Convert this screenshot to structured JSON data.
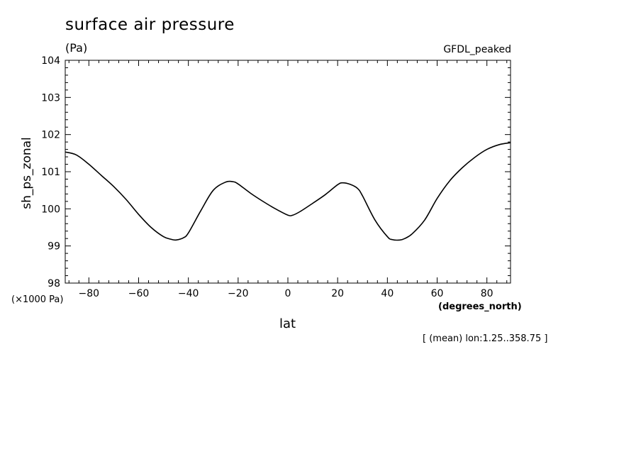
{
  "title": "surface air pressure",
  "units": "(Pa)",
  "model": "GFDL_peaked",
  "y_scale_note": "(×1000 Pa)",
  "x_units": "(degrees_north)",
  "footnote": "[ (mean) lon:1.25..358.75 ]",
  "chart_data": {
    "type": "line",
    "title": "surface air pressure",
    "xlabel": "lat",
    "ylabel": "sh_ps_zonal",
    "xlim": [
      -89.5,
      89.5
    ],
    "ylim": [
      98,
      104
    ],
    "xticks": [
      -80,
      -60,
      -40,
      -20,
      0,
      20,
      40,
      60,
      80
    ],
    "yticks": [
      98,
      99,
      100,
      101,
      102,
      103,
      104
    ],
    "grid": false,
    "series": [
      {
        "x": [
          -89.5,
          -85,
          -80,
          -75,
          -70,
          -65,
          -60,
          -55,
          -50,
          -47,
          -45,
          -42,
          -40,
          -35,
          -30,
          -25,
          -22,
          -20,
          -15,
          -10,
          -5,
          0,
          2,
          5,
          10,
          15,
          20,
          22,
          25,
          28,
          30,
          35,
          40,
          42,
          45,
          47,
          50,
          55,
          60,
          65,
          70,
          75,
          80,
          85,
          89.5
        ],
        "y": [
          101.53,
          101.45,
          101.2,
          100.9,
          100.6,
          100.25,
          99.85,
          99.5,
          99.25,
          99.18,
          99.16,
          99.22,
          99.35,
          99.95,
          100.5,
          100.72,
          100.73,
          100.67,
          100.42,
          100.2,
          100.0,
          99.83,
          99.83,
          99.93,
          100.15,
          100.38,
          100.65,
          100.7,
          100.66,
          100.55,
          100.35,
          99.7,
          99.25,
          99.17,
          99.16,
          99.2,
          99.33,
          99.7,
          100.28,
          100.75,
          101.1,
          101.38,
          101.6,
          101.73,
          101.78
        ]
      }
    ]
  }
}
